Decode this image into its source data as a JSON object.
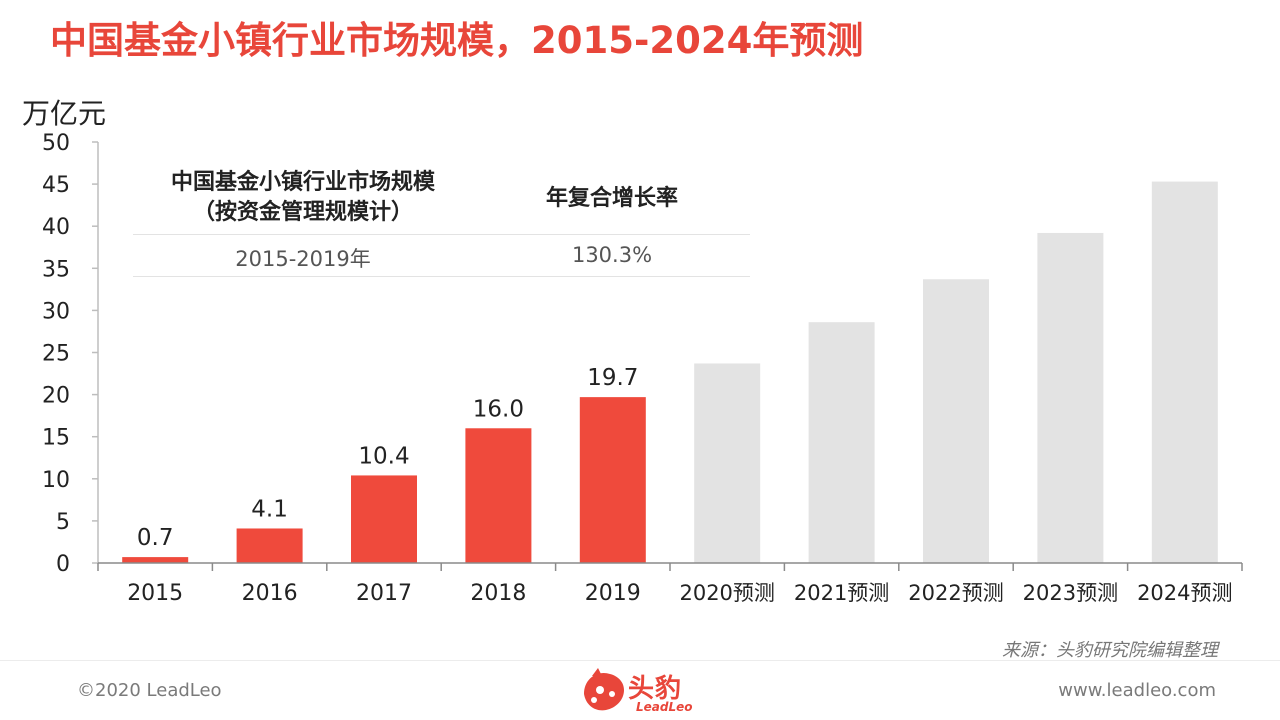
{
  "title": "中国基金小镇行业市场规模，2015-2024年预测",
  "unit": "万亿元",
  "info_table": {
    "header_left_line1": "中国基金小镇行业市场规模",
    "header_left_line2": "（按资金管理规模计）",
    "header_right": "年复合增长率",
    "period": "2015-2019年",
    "cagr": "130.3%"
  },
  "source": "来源：头豹研究院编辑整理",
  "copyright": "©2020 LeadLeo",
  "website": "www.leadleo.com",
  "logo": {
    "text": "头豹",
    "sub": "LeadLeo"
  },
  "colors": {
    "actual": "#ef4a3c",
    "forecast": "#e3e3e3",
    "title": "#e8463a"
  },
  "chart_data": {
    "type": "bar",
    "categories": [
      "2015",
      "2016",
      "2017",
      "2018",
      "2019",
      "2020预测",
      "2021预测",
      "2022预测",
      "2023预测",
      "2024预测"
    ],
    "values": [
      0.7,
      4.1,
      10.4,
      16.0,
      19.7,
      23.7,
      28.6,
      33.7,
      39.2,
      45.3
    ],
    "value_labels": [
      "0.7",
      "4.1",
      "10.4",
      "16.0",
      "19.7",
      "",
      "",
      "",
      "",
      ""
    ],
    "forecast": [
      false,
      false,
      false,
      false,
      false,
      true,
      true,
      true,
      true,
      true
    ],
    "ylabel": "万亿元",
    "ylim": [
      0,
      50
    ],
    "yticks": [
      "0",
      "5",
      "10",
      "15",
      "20",
      "25",
      "30",
      "35",
      "40",
      "45",
      "50"
    ],
    "grid": false
  }
}
